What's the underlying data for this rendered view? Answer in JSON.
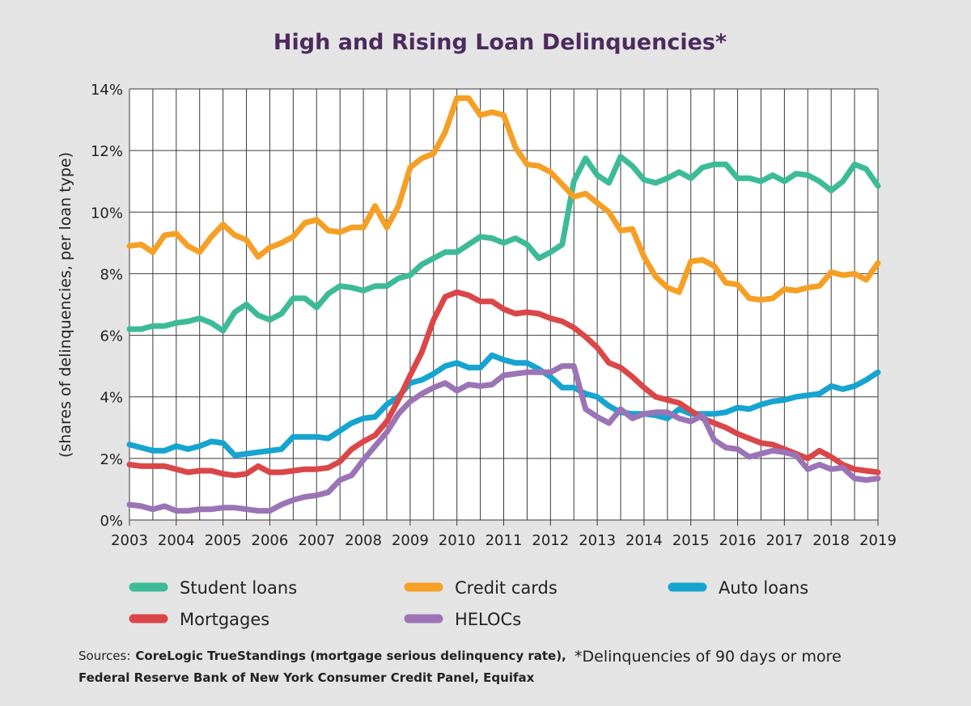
{
  "chart_data": {
    "type": "line",
    "title": "High and Rising Loan Delinquencies*",
    "ylabel": "(shares of delinquencies, per loan type)",
    "xlabel": "",
    "xlim": [
      2003,
      2019
    ],
    "ylim": [
      0,
      14
    ],
    "x_ticks": [
      "2003",
      "2004",
      "2005",
      "2006",
      "2007",
      "2008",
      "2009",
      "2010",
      "2011",
      "2012",
      "2013",
      "2014",
      "2015",
      "2016",
      "2017",
      "2018",
      "2019"
    ],
    "y_ticks": [
      "0%",
      "2%",
      "4%",
      "6%",
      "8%",
      "10%",
      "12%",
      "14%"
    ],
    "grid": true,
    "legend_position": "bottom",
    "series": [
      {
        "name": "Student loans",
        "color": "#3dbb98",
        "x": [
          2003.0,
          2003.25,
          2003.5,
          2003.75,
          2004.0,
          2004.25,
          2004.5,
          2004.75,
          2005.0,
          2005.25,
          2005.5,
          2005.75,
          2006.0,
          2006.25,
          2006.5,
          2006.75,
          2007.0,
          2007.25,
          2007.5,
          2007.75,
          2008.0,
          2008.25,
          2008.5,
          2008.75,
          2009.0,
          2009.25,
          2009.5,
          2009.75,
          2010.0,
          2010.25,
          2010.5,
          2010.75,
          2011.0,
          2011.25,
          2011.5,
          2011.75,
          2012.0,
          2012.25,
          2012.5,
          2012.75,
          2013.0,
          2013.25,
          2013.5,
          2013.75,
          2014.0,
          2014.25,
          2014.5,
          2014.75,
          2015.0,
          2015.25,
          2015.5,
          2015.75,
          2016.0,
          2016.25,
          2016.5,
          2016.75,
          2017.0,
          2017.25,
          2017.5,
          2017.75,
          2018.0,
          2018.25,
          2018.5,
          2018.75,
          2019.0
        ],
        "y": [
          6.2,
          6.2,
          6.3,
          6.3,
          6.4,
          6.45,
          6.55,
          6.4,
          6.15,
          6.75,
          7.0,
          6.65,
          6.5,
          6.7,
          7.2,
          7.2,
          6.9,
          7.35,
          7.6,
          7.55,
          7.45,
          7.6,
          7.6,
          7.85,
          7.95,
          8.3,
          8.5,
          8.7,
          8.7,
          8.95,
          9.2,
          9.15,
          9.0,
          9.15,
          8.95,
          8.5,
          8.7,
          8.95,
          11.0,
          11.75,
          11.2,
          10.95,
          11.8,
          11.5,
          11.05,
          10.95,
          11.1,
          11.3,
          11.1,
          11.45,
          11.55,
          11.55,
          11.1,
          11.1,
          11.0,
          11.2,
          11.0,
          11.25,
          11.2,
          11.0,
          10.7,
          11.0,
          11.55,
          11.4,
          10.85
        ]
      },
      {
        "name": "Credit cards",
        "color": "#f5a025",
        "x": [
          2003.0,
          2003.25,
          2003.5,
          2003.75,
          2004.0,
          2004.25,
          2004.5,
          2004.75,
          2005.0,
          2005.25,
          2005.5,
          2005.75,
          2006.0,
          2006.25,
          2006.5,
          2006.75,
          2007.0,
          2007.25,
          2007.5,
          2007.75,
          2008.0,
          2008.25,
          2008.5,
          2008.75,
          2009.0,
          2009.25,
          2009.5,
          2009.75,
          2010.0,
          2010.25,
          2010.5,
          2010.75,
          2011.0,
          2011.25,
          2011.5,
          2011.75,
          2012.0,
          2012.25,
          2012.5,
          2012.75,
          2013.0,
          2013.25,
          2013.5,
          2013.75,
          2014.0,
          2014.25,
          2014.5,
          2014.75,
          2015.0,
          2015.25,
          2015.5,
          2015.75,
          2016.0,
          2016.25,
          2016.5,
          2016.75,
          2017.0,
          2017.25,
          2017.5,
          2017.75,
          2018.0,
          2018.25,
          2018.5,
          2018.75,
          2019.0
        ],
        "y": [
          8.9,
          8.95,
          8.7,
          9.25,
          9.3,
          8.9,
          8.7,
          9.2,
          9.6,
          9.25,
          9.1,
          8.55,
          8.85,
          9.0,
          9.2,
          9.65,
          9.75,
          9.4,
          9.35,
          9.5,
          9.5,
          10.2,
          9.5,
          10.2,
          11.45,
          11.75,
          11.9,
          12.6,
          13.7,
          13.7,
          13.15,
          13.25,
          13.15,
          12.1,
          11.55,
          11.5,
          11.3,
          10.9,
          10.5,
          10.6,
          10.3,
          10.0,
          9.4,
          9.45,
          8.55,
          7.9,
          7.55,
          7.4,
          8.4,
          8.45,
          8.25,
          7.7,
          7.65,
          7.2,
          7.15,
          7.2,
          7.5,
          7.45,
          7.55,
          7.6,
          8.05,
          7.95,
          8.0,
          7.8,
          8.35
        ]
      },
      {
        "name": "Auto loans",
        "color": "#16a4d0",
        "x": [
          2003.0,
          2003.25,
          2003.5,
          2003.75,
          2004.0,
          2004.25,
          2004.5,
          2004.75,
          2005.0,
          2005.25,
          2005.5,
          2005.75,
          2006.0,
          2006.25,
          2006.5,
          2006.75,
          2007.0,
          2007.25,
          2007.5,
          2007.75,
          2008.0,
          2008.25,
          2008.5,
          2008.75,
          2009.0,
          2009.25,
          2009.5,
          2009.75,
          2010.0,
          2010.25,
          2010.5,
          2010.75,
          2011.0,
          2011.25,
          2011.5,
          2011.75,
          2012.0,
          2012.25,
          2012.5,
          2012.75,
          2013.0,
          2013.25,
          2013.5,
          2013.75,
          2014.0,
          2014.25,
          2014.5,
          2014.75,
          2015.0,
          2015.25,
          2015.5,
          2015.75,
          2016.0,
          2016.25,
          2016.5,
          2016.75,
          2017.0,
          2017.25,
          2017.5,
          2017.75,
          2018.0,
          2018.25,
          2018.5,
          2018.75,
          2019.0
        ],
        "y": [
          2.45,
          2.35,
          2.25,
          2.25,
          2.4,
          2.3,
          2.4,
          2.55,
          2.5,
          2.1,
          2.15,
          2.2,
          2.25,
          2.3,
          2.7,
          2.7,
          2.7,
          2.65,
          2.9,
          3.15,
          3.3,
          3.35,
          3.75,
          4.0,
          4.45,
          4.55,
          4.75,
          5.0,
          5.1,
          4.95,
          4.95,
          5.35,
          5.2,
          5.1,
          5.1,
          4.9,
          4.65,
          4.3,
          4.3,
          4.1,
          4.0,
          3.7,
          3.5,
          3.45,
          3.45,
          3.4,
          3.3,
          3.6,
          3.45,
          3.45,
          3.45,
          3.5,
          3.65,
          3.6,
          3.75,
          3.85,
          3.9,
          4.0,
          4.05,
          4.1,
          4.35,
          4.25,
          4.35,
          4.55,
          4.8
        ]
      },
      {
        "name": "Mortgages",
        "color": "#db4648",
        "x": [
          2003.0,
          2003.25,
          2003.5,
          2003.75,
          2004.0,
          2004.25,
          2004.5,
          2004.75,
          2005.0,
          2005.25,
          2005.5,
          2005.75,
          2006.0,
          2006.25,
          2006.5,
          2006.75,
          2007.0,
          2007.25,
          2007.5,
          2007.75,
          2008.0,
          2008.25,
          2008.5,
          2008.75,
          2009.0,
          2009.25,
          2009.5,
          2009.75,
          2010.0,
          2010.25,
          2010.5,
          2010.75,
          2011.0,
          2011.25,
          2011.5,
          2011.75,
          2012.0,
          2012.25,
          2012.5,
          2012.75,
          2013.0,
          2013.25,
          2013.5,
          2013.75,
          2014.0,
          2014.25,
          2014.5,
          2014.75,
          2015.0,
          2015.25,
          2015.5,
          2015.75,
          2016.0,
          2016.25,
          2016.5,
          2016.75,
          2017.0,
          2017.25,
          2017.5,
          2017.75,
          2018.0,
          2018.25,
          2018.5,
          2018.75,
          2019.0
        ],
        "y": [
          1.8,
          1.75,
          1.75,
          1.75,
          1.65,
          1.55,
          1.6,
          1.6,
          1.5,
          1.45,
          1.5,
          1.75,
          1.55,
          1.55,
          1.6,
          1.65,
          1.65,
          1.7,
          1.9,
          2.3,
          2.55,
          2.75,
          3.2,
          3.9,
          4.7,
          5.45,
          6.5,
          7.25,
          7.4,
          7.3,
          7.1,
          7.1,
          6.85,
          6.7,
          6.75,
          6.7,
          6.55,
          6.45,
          6.25,
          5.95,
          5.6,
          5.1,
          4.95,
          4.65,
          4.3,
          4.0,
          3.9,
          3.8,
          3.55,
          3.3,
          3.15,
          3.0,
          2.8,
          2.65,
          2.5,
          2.45,
          2.3,
          2.15,
          2.0,
          2.25,
          2.05,
          1.8,
          1.65,
          1.6,
          1.55
        ]
      },
      {
        "name": "HELOCs",
        "color": "#9b74b6",
        "x": [
          2003.0,
          2003.25,
          2003.5,
          2003.75,
          2004.0,
          2004.25,
          2004.5,
          2004.75,
          2005.0,
          2005.25,
          2005.5,
          2005.75,
          2006.0,
          2006.25,
          2006.5,
          2006.75,
          2007.0,
          2007.25,
          2007.5,
          2007.75,
          2008.0,
          2008.25,
          2008.5,
          2008.75,
          2009.0,
          2009.25,
          2009.5,
          2009.75,
          2010.0,
          2010.25,
          2010.5,
          2010.75,
          2011.0,
          2011.25,
          2011.5,
          2011.75,
          2012.0,
          2012.25,
          2012.5,
          2012.75,
          2013.0,
          2013.25,
          2013.5,
          2013.75,
          2014.0,
          2014.25,
          2014.5,
          2014.75,
          2015.0,
          2015.25,
          2015.5,
          2015.75,
          2016.0,
          2016.25,
          2016.5,
          2016.75,
          2017.0,
          2017.25,
          2017.5,
          2017.75,
          2018.0,
          2018.25,
          2018.5,
          2018.75,
          2019.0
        ],
        "y": [
          0.5,
          0.45,
          0.35,
          0.45,
          0.3,
          0.3,
          0.35,
          0.35,
          0.4,
          0.4,
          0.35,
          0.3,
          0.3,
          0.5,
          0.65,
          0.75,
          0.8,
          0.9,
          1.3,
          1.45,
          1.95,
          2.4,
          2.85,
          3.45,
          3.85,
          4.1,
          4.3,
          4.45,
          4.2,
          4.4,
          4.35,
          4.4,
          4.7,
          4.75,
          4.8,
          4.8,
          4.8,
          5.0,
          5.0,
          3.6,
          3.35,
          3.15,
          3.6,
          3.3,
          3.45,
          3.5,
          3.5,
          3.3,
          3.2,
          3.4,
          2.6,
          2.35,
          2.3,
          2.05,
          2.15,
          2.25,
          2.2,
          2.1,
          1.65,
          1.8,
          1.65,
          1.7,
          1.35,
          1.3,
          1.35
        ]
      }
    ]
  },
  "footer": {
    "sources_prefix": "Sources:",
    "sources_line1": "CoreLogic TrueStandings (mortgage serious delinquency rate),",
    "sources_line2": "Federal Reserve Bank of New York Consumer Credit Panel, Equifax",
    "note": "*Delinquencies of 90 days or more"
  }
}
